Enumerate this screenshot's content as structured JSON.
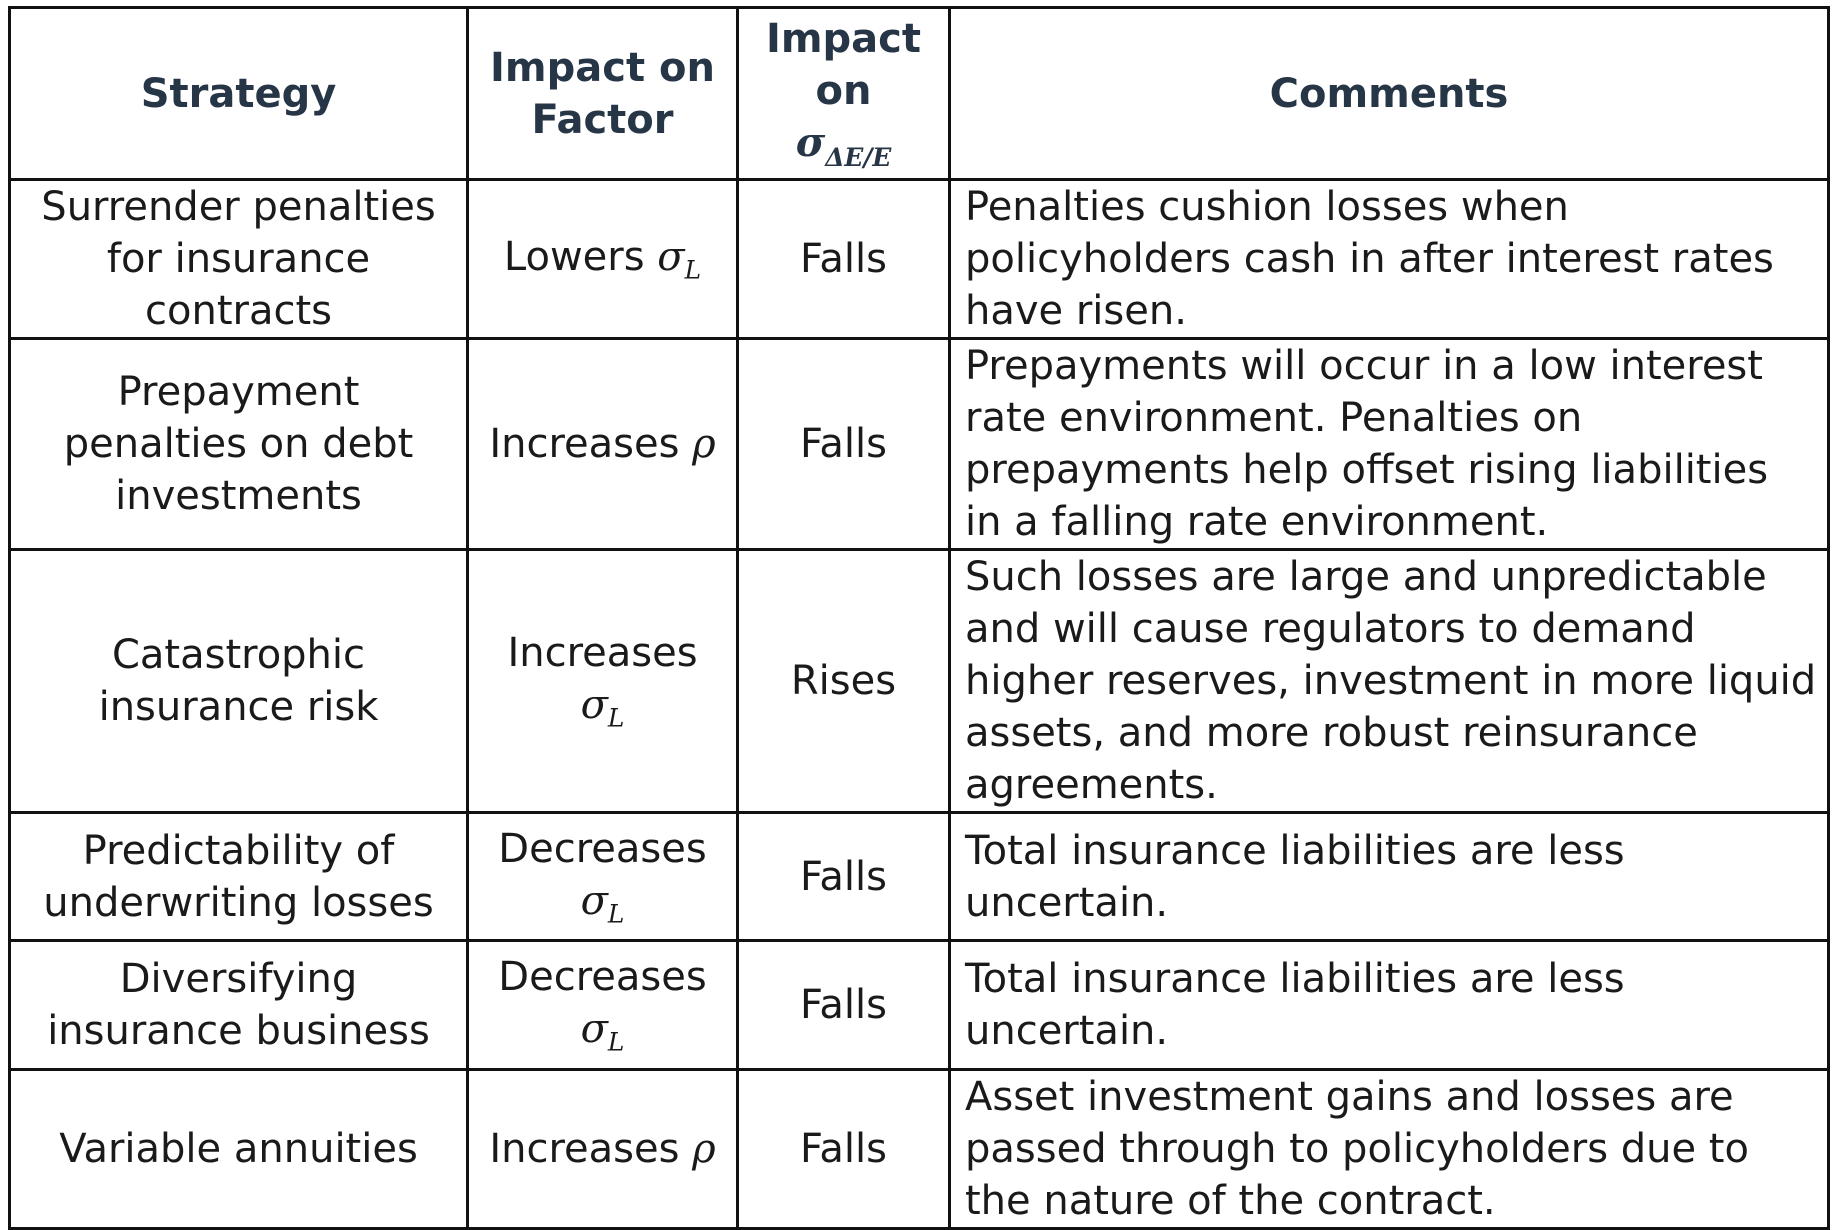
{
  "header": {
    "strategy": "Strategy",
    "impact_factor": "Impact on Factor",
    "impact_sigma_prefix": "Impact on",
    "impact_sigma_symbol": "σ",
    "impact_sigma_sub": "ΔE/E",
    "comments": "Comments"
  },
  "rows": [
    {
      "strategy": "Surrender penalties for insurance contracts",
      "impact_text": "Lowers",
      "impact_symbol": "σ",
      "impact_sub": "L",
      "effect": "Falls",
      "comment": "Penalties cushion losses when policyholders cash in after interest rates have risen."
    },
    {
      "strategy": "Prepayment penalties on debt investments",
      "impact_text": "Increases",
      "impact_symbol": "ρ",
      "impact_sub": "",
      "effect": "Falls",
      "comment": "Prepayments will occur in a low interest rate environment. Penalties on prepayments help offset rising liabilities in a falling rate environment."
    },
    {
      "strategy": "Catastrophic insurance risk",
      "impact_text": "Increases",
      "impact_symbol": "σ",
      "impact_sub": "L",
      "effect": "Rises",
      "comment": "Such losses are large and unpredictable and will cause regulators to demand higher reserves, investment in more liquid assets, and more robust reinsurance agreements."
    },
    {
      "strategy": "Predictability of underwriting losses",
      "impact_text": "Decreases",
      "impact_symbol": "σ",
      "impact_sub": "L",
      "effect": "Falls",
      "comment": "Total insurance liabilities are less uncertain."
    },
    {
      "strategy": "Diversifying insurance business",
      "impact_text": "Decreases",
      "impact_symbol": "σ",
      "impact_sub": "L",
      "effect": "Falls",
      "comment": "Total insurance liabilities are less uncertain."
    },
    {
      "strategy": "Variable annuities",
      "impact_text": "Increases",
      "impact_symbol": "ρ",
      "impact_sub": "",
      "effect": "Falls",
      "comment": "Asset investment gains and losses are passed through to policyholders due to the nature of the contract."
    }
  ]
}
